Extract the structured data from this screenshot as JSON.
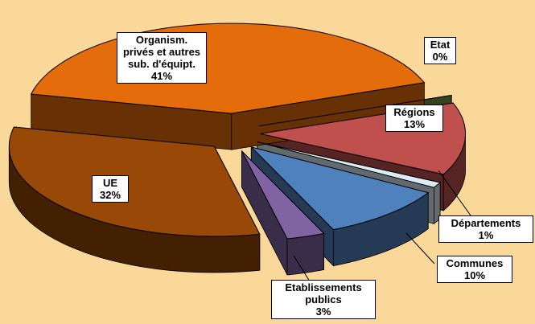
{
  "chart_data": {
    "type": "pie3d",
    "categories": [
      "Etat",
      "Régions",
      "Départements",
      "Communes",
      "Etablissements publics",
      "UE",
      "Organism. privés et autres sub. d'équipt."
    ],
    "values": [
      0,
      13,
      1,
      10,
      3,
      32,
      41
    ],
    "value_labels": [
      "0%",
      "13%",
      "1%",
      "10%",
      "3%",
      "32%",
      "41%"
    ],
    "colors": [
      "#77933C",
      "#C0504D",
      "#DCEBF5",
      "#4F81BD",
      "#8064A2",
      "#984807",
      "#E46C0A"
    ]
  }
}
